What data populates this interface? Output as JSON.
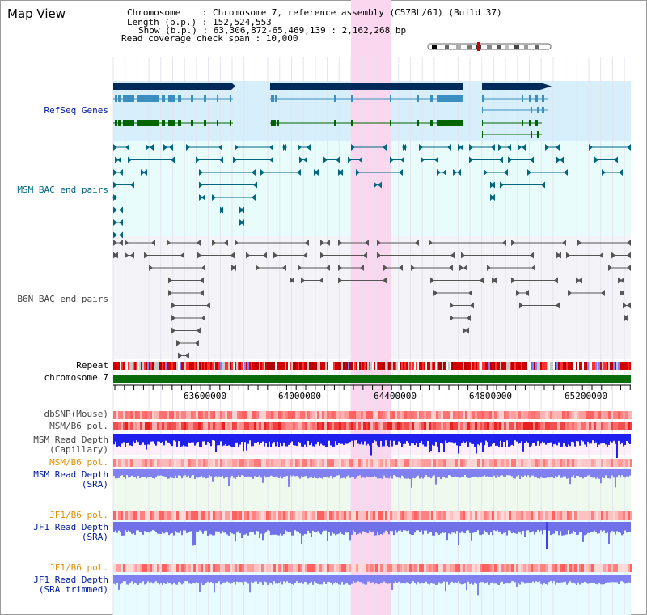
{
  "view": {
    "title": "Map View",
    "chromosome_line": "Chromosome    : Chromosome 7, reference assembly (C57BL/6J) (Build 37)",
    "length_line": "Length (b.p.) : 152,524,553",
    "show_line": "Show (b.p.) : 63,306,872-65,469,139 : 2,162,268 bp",
    "span_line": "Read coverage check span : 10,000"
  },
  "colors": {
    "refseq_bg": "#d6effb",
    "msm_bac_bg": "#e8fcfc",
    "b6n_bac_bg": "#f3f3f8",
    "highlight": "#fbd7ef",
    "gene_navy": "#002a5a",
    "gene_teal": "#3b8fc0",
    "gene_green": "#006400",
    "chromosome_green": "#0a6b0a",
    "label_navy": "#001aa0",
    "label_teal": "#006680",
    "label_gray": "#444444",
    "label_orange": "#e09000"
  },
  "tracks": {
    "refseq": "RefSeq Genes",
    "msm_bac": "MSM BAC end pairs",
    "b6n_bac": "B6N BAC end pairs",
    "repeat": "Repeat",
    "chromosome": "chromosome 7",
    "dbsnp": "dbSNP(Mouse)",
    "msm_pol": "MSM/B6 pol.",
    "msm_depth_cap_1": "MSM Read Depth",
    "msm_depth_cap_2": "(Capillary)",
    "msm_pol2": "MSM/B6 pol.",
    "msm_depth_sra_1": "MSM Read Depth",
    "msm_depth_sra_2": "(SRA)",
    "jf1_pol": "JF1/B6 pol.",
    "jf1_depth_1": "JF1 Read Depth",
    "jf1_depth_2": "(SRA)",
    "jf1_pol2": "JF1/B6 pol.",
    "jf1_trim_1": "JF1 Read Depth",
    "jf1_trim_2": "(SRA trimmed)"
  },
  "axis": {
    "ticks": [
      {
        "value": 63600000,
        "label": "63600000"
      },
      {
        "value": 64000000,
        "label": "64000000"
      },
      {
        "value": 64400000,
        "label": "64400000"
      },
      {
        "value": 64800000,
        "label": "64800000"
      },
      {
        "value": 65200000,
        "label": "65200000"
      }
    ]
  }
}
